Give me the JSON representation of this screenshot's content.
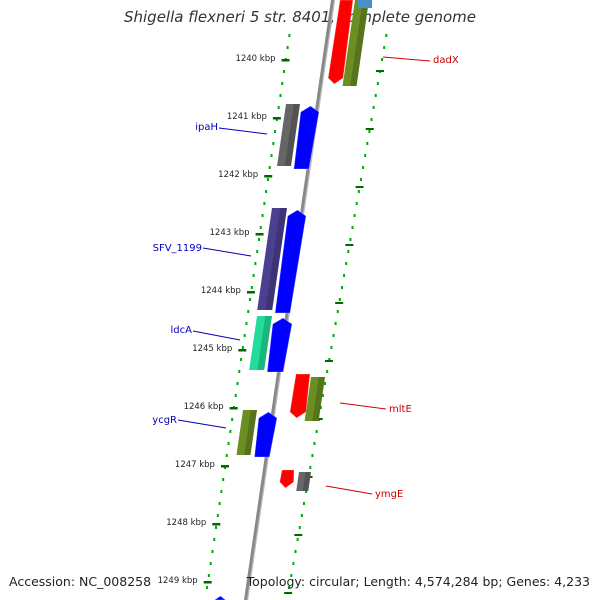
{
  "title": "Shigella flexneri 5 str. 8401, complete genome",
  "accession": "Accession: NC_008258",
  "summary": "Topology: circular; Length: 4,574,284 bp; Genes: 4,233",
  "scale_labels": [
    "1240 kbp",
    "1241 kbp",
    "1242 kbp",
    "1243 kbp",
    "1244 kbp",
    "1245 kbp",
    "1246 kbp",
    "1247 kbp",
    "1248 kbp",
    "1249 kbp"
  ],
  "genes": [
    {
      "label": "dadX",
      "strand": "+",
      "color": "#cc0000"
    },
    {
      "label": "ipaH",
      "strand": "-",
      "color": "#0000bb"
    },
    {
      "label": "SFV_1199",
      "strand": "-",
      "color": "#0000bb"
    },
    {
      "label": "ldcA",
      "strand": "-",
      "color": "#0000bb"
    },
    {
      "label": "mltE",
      "strand": "+",
      "color": "#cc0000"
    },
    {
      "label": "ycgR",
      "strand": "-",
      "color": "#0000bb"
    },
    {
      "label": "ymgE",
      "strand": "+",
      "color": "#cc0000"
    }
  ],
  "colors": {
    "forward_cds": "#ff0000",
    "reverse_cds": "#0000ff",
    "cog_green": "#6b8e23",
    "cog_gray": "#666666",
    "cog_purple": "#4b3f8f",
    "cog_teal": "#22dd99",
    "cog_lightblue": "#4a90c8",
    "ruler_dots": "#00aa00",
    "ruler_ticks": "#006600",
    "backbone": "#888888"
  }
}
